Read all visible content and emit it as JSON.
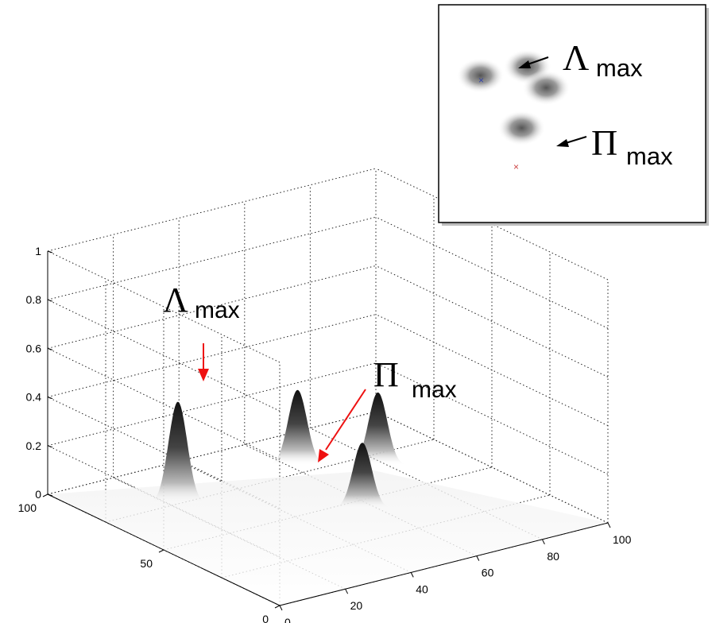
{
  "chart_data": [
    {
      "type": "surface3d",
      "x_ticks": [
        "0",
        "20",
        "40",
        "60",
        "80",
        "100"
      ],
      "y_ticks": [
        "0",
        "50",
        "100"
      ],
      "z_ticks": [
        "0",
        "0.2",
        "0.4",
        "0.6",
        "0.8",
        "1"
      ],
      "xlim": [
        0,
        100
      ],
      "ylim": [
        0,
        100
      ],
      "zlim": [
        0,
        1
      ],
      "grid": true,
      "peaks": [
        {
          "x": 22,
          "y": 75,
          "z": 0.42,
          "label": "Λmax"
        },
        {
          "x": 62,
          "y": 80,
          "z": 0.31
        },
        {
          "x": 57,
          "y": 45,
          "z": 0.27,
          "label": "Πmax"
        },
        {
          "x": 78,
          "y": 68,
          "z": 0.3
        }
      ],
      "annotations": [
        {
          "symbol": "Λ",
          "subscript": "max",
          "arrow_color": "#ee1111"
        },
        {
          "symbol": "Π",
          "subscript": "max",
          "arrow_color": "#ee1111"
        }
      ]
    },
    {
      "type": "heatmap",
      "blobs": [
        {
          "x": 22,
          "y": 75
        },
        {
          "x": 62,
          "y": 80
        },
        {
          "x": 78,
          "y": 68
        },
        {
          "x": 57,
          "y": 45
        }
      ],
      "markers": [
        {
          "label": "Λmax",
          "color": "#3344aa"
        },
        {
          "label": "Πmax",
          "color": "#cc4444"
        }
      ],
      "annotations": [
        {
          "symbol": "Λ",
          "subscript": "max",
          "arrow_color": "#000000"
        },
        {
          "symbol": "Π",
          "subscript": "max",
          "arrow_color": "#000000"
        }
      ]
    }
  ]
}
